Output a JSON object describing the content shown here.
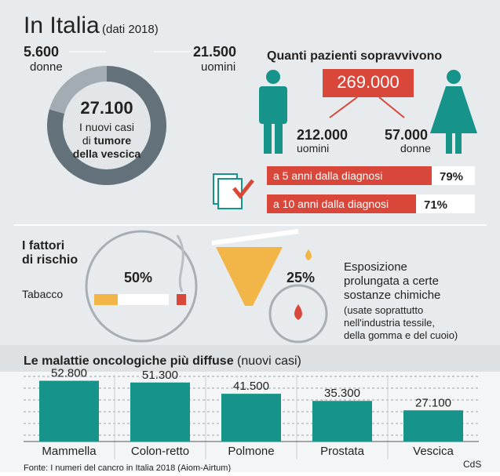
{
  "header": {
    "title": "In Italia",
    "subtitle": "(dati 2018)"
  },
  "donut": {
    "values": [
      5600,
      21500
    ],
    "value_labels": [
      "5.600",
      "21.500"
    ],
    "labels": [
      "donne",
      "uomini"
    ],
    "colors": [
      "#a3acb3",
      "#63717b"
    ],
    "total": "27.100",
    "caption": [
      "I nuovi casi",
      "di",
      "tumore",
      "della vescica"
    ]
  },
  "survival": {
    "title": "Quanti pazienti sopravvivono",
    "total": "269.000",
    "men": {
      "value": "212.000",
      "label": "uomini"
    },
    "women": {
      "value": "57.000",
      "label": "donne"
    },
    "rows": [
      {
        "label": "a 5 anni dalla diagnosi",
        "value": "79%"
      },
      {
        "label": "a 10 anni dalla diagnosi",
        "value": "71%"
      }
    ]
  },
  "risk": {
    "title": [
      "I fattori",
      "di rischio"
    ],
    "tobacco": {
      "label": "Tabacco",
      "value": "50%"
    },
    "chemicals": {
      "value": "25%",
      "text": [
        "Esposizione",
        "prolungata a certe",
        "sostanze chimiche"
      ],
      "note": [
        "(usate soprattutto",
        "nell'industria tessile,",
        "della gomma e del cuoio)"
      ]
    }
  },
  "chart_data": {
    "type": "bar",
    "title": "Le malattie oncologiche più diffuse",
    "subtitle": "(nuovi casi)",
    "categories": [
      "Mammella",
      "Colon-retto",
      "Polmone",
      "Prostata",
      "Vescica"
    ],
    "values": [
      52800,
      51300,
      41500,
      35300,
      27100
    ],
    "value_labels": [
      "52.800",
      "51.300",
      "41.500",
      "35.300",
      "27.100"
    ],
    "color": "#17948a",
    "ylim": [
      0,
      60000
    ]
  },
  "footer": {
    "source": "Fonte: I numeri del cancro in Italia 2018 (Aiom-Airtum)",
    "credit": "CdS"
  }
}
